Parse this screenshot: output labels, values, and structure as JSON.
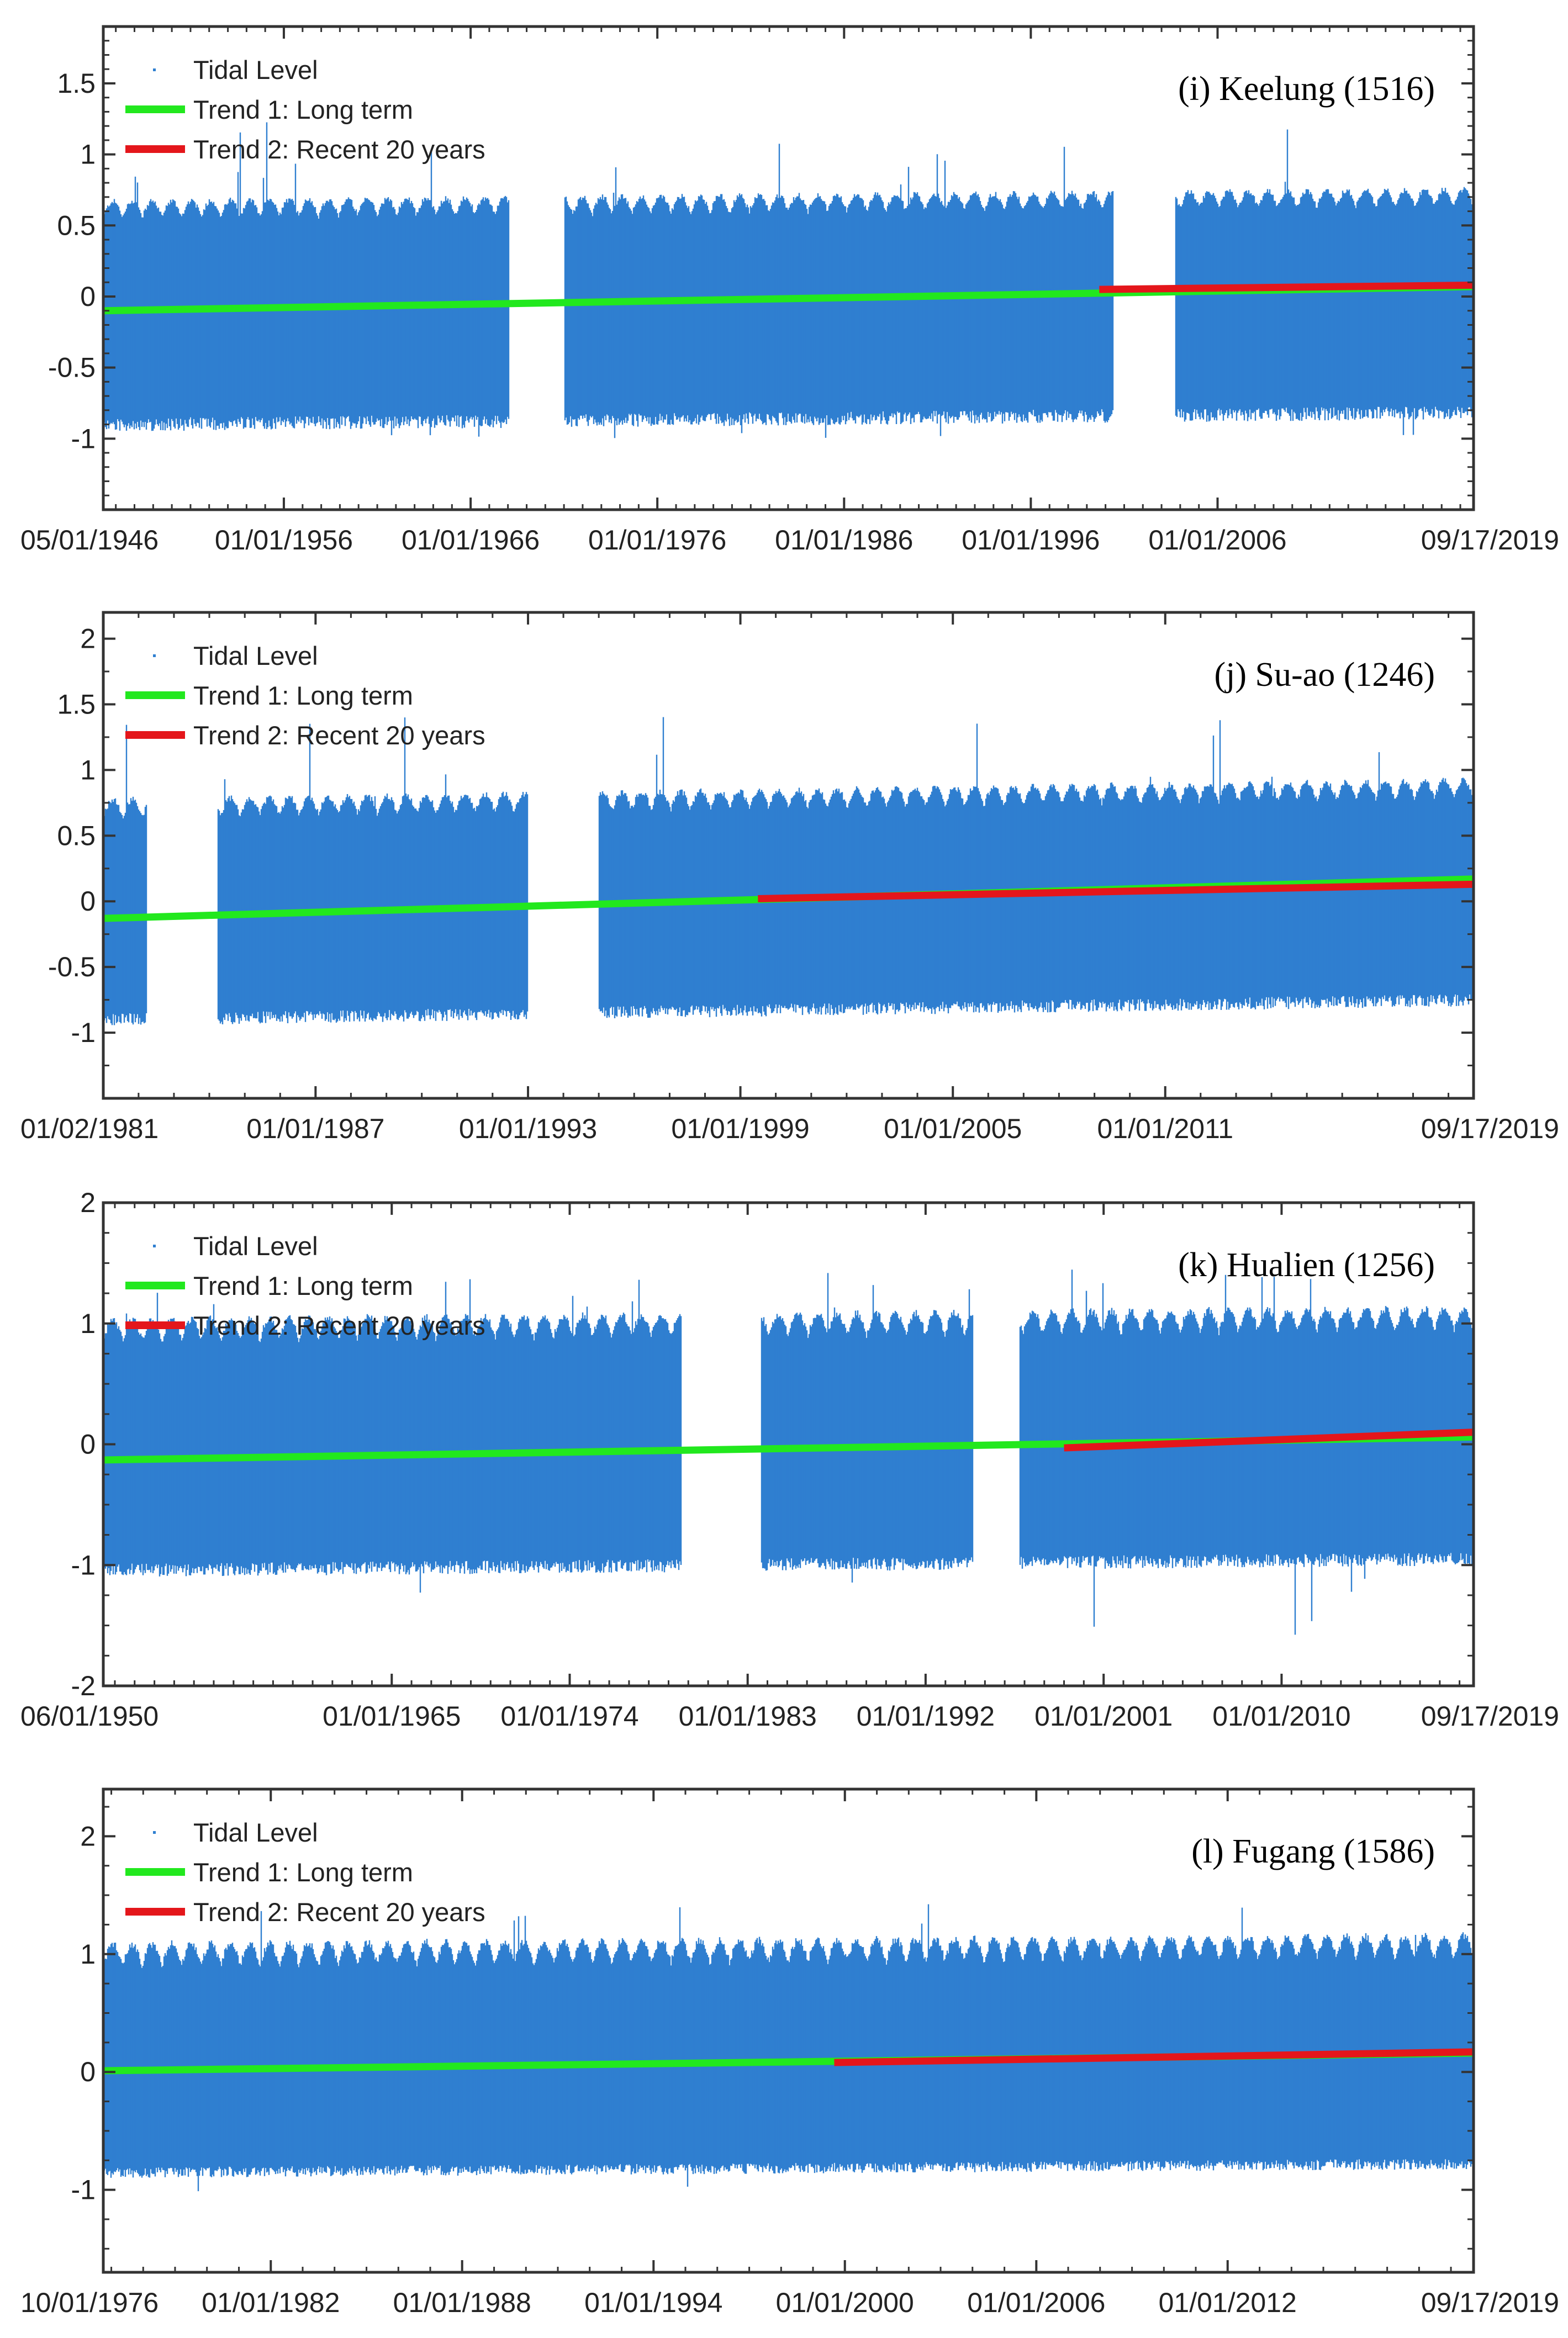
{
  "colors": {
    "tidal": "#2f7fd0",
    "trend_long": "#22e81e",
    "trend_recent": "#e4161b"
  },
  "chart_data": [
    {
      "type": "scatter",
      "title": "(i) Keelung (1516)",
      "legend": [
        "Tidal Level",
        "Trend 1: Long term",
        "Trend 2: Recent 20 years"
      ],
      "legend_position": "top-left",
      "grid": false,
      "xlim": [
        "1946-05-01",
        "2019-09-17"
      ],
      "ylim": [
        -1.5,
        1.9
      ],
      "yticks": [
        1.5,
        1,
        0.5,
        0,
        -0.5,
        -1
      ],
      "ytick_labels": [
        "1.5",
        "1",
        "0.5",
        "0",
        "-0.5",
        "-1"
      ],
      "xticks": [
        "1946-05-01",
        "1956-01-01",
        "1966-01-01",
        "1976-01-01",
        "1986-01-01",
        "1996-01-01",
        "2006-01-01",
        "2019-09-17"
      ],
      "xtick_labels": [
        "05/01/1946",
        "01/01/1956",
        "01/01/1966",
        "01/01/1976",
        "01/01/1986",
        "01/01/1996",
        "01/01/2006",
        "09/17/2019"
      ],
      "tidal_band": {
        "upper": 0.65,
        "lower": -0.95,
        "max_spike": 1.25,
        "min_spike": -1.0
      },
      "gaps": [
        [
          "1968-02-01",
          "1971-01-01"
        ],
        [
          "2000-06-01",
          "2003-10-01"
        ]
      ],
      "series": [
        {
          "name": "Trend 1: Long term",
          "x": [
            "1946-05-01",
            "2019-09-17"
          ],
          "y": [
            -0.1,
            0.07
          ]
        },
        {
          "name": "Trend 2: Recent 20 years",
          "x": [
            "1999-09-01",
            "2019-09-17"
          ],
          "y": [
            0.05,
            0.08
          ]
        }
      ]
    },
    {
      "type": "scatter",
      "title": "(j) Su-ao (1246)",
      "legend": [
        "Tidal Level",
        "Trend 1: Long term",
        "Trend 2: Recent 20 years"
      ],
      "legend_position": "top-left",
      "grid": false,
      "xlim": [
        "1981-01-02",
        "2019-09-17"
      ],
      "ylim": [
        -1.5,
        2.2
      ],
      "yticks": [
        2,
        1.5,
        1,
        0.5,
        0,
        -0.5,
        -1
      ],
      "ytick_labels": [
        "2",
        "1.5",
        "1",
        "0.5",
        "0",
        "-0.5",
        "-1"
      ],
      "xticks": [
        "1981-01-02",
        "1987-01-01",
        "1993-01-01",
        "1999-01-01",
        "2005-01-01",
        "2011-01-01",
        "2019-09-17"
      ],
      "xtick_labels": [
        "01/02/1981",
        "01/01/1987",
        "01/01/1993",
        "01/01/1999",
        "01/01/2005",
        "01/01/2011",
        "09/17/2019"
      ],
      "tidal_band": {
        "upper": 0.75,
        "lower": -0.95,
        "max_spike": 1.45,
        "min_spike": -1.0
      },
      "gaps": [
        [
          "1982-04-01",
          "1984-04-01"
        ],
        [
          "1993-01-01",
          "1995-01-01"
        ]
      ],
      "series": [
        {
          "name": "Trend 1: Long term",
          "x": [
            "1981-01-02",
            "2019-09-17"
          ],
          "y": [
            -0.13,
            0.17
          ]
        },
        {
          "name": "Trend 2: Recent 20 years",
          "x": [
            "1999-07-01",
            "2019-09-17"
          ],
          "y": [
            0.02,
            0.13
          ]
        }
      ]
    },
    {
      "type": "scatter",
      "title": "(k) Hualien (1256)",
      "legend": [
        "Tidal Level",
        "Trend 1: Long term",
        "Trend 2: Recent 20 years"
      ],
      "legend_position": "top-left",
      "grid": false,
      "xlim": [
        "1950-06-01",
        "2019-09-17"
      ],
      "ylim": [
        -2,
        2
      ],
      "yticks": [
        2,
        1,
        0,
        -1,
        -2
      ],
      "ytick_labels": [
        "2",
        "1",
        "0",
        "-1",
        "-2"
      ],
      "xticks": [
        "1950-06-01",
        "1965-01-01",
        "1974-01-01",
        "1983-01-01",
        "1992-01-01",
        "2001-01-01",
        "2010-01-01",
        "2019-09-17"
      ],
      "xtick_labels": [
        "06/01/1950",
        "01/01/1965",
        "01/01/1974",
        "01/01/1983",
        "01/01/1992",
        "01/01/2001",
        "01/01/2010",
        "09/17/2019"
      ],
      "tidal_band": {
        "upper": 1.0,
        "lower": -1.1,
        "max_spike": 1.45,
        "min_spike": -1.7
      },
      "gaps": [
        [
          "1979-09-01",
          "1983-09-01"
        ],
        [
          "1994-06-01",
          "1996-10-01"
        ]
      ],
      "series": [
        {
          "name": "Trend 1: Long term",
          "x": [
            "1950-06-01",
            "2019-09-17"
          ],
          "y": [
            -0.13,
            0.06
          ]
        },
        {
          "name": "Trend 2: Recent 20 years",
          "x": [
            "1999-01-01",
            "2019-09-17"
          ],
          "y": [
            -0.03,
            0.1
          ]
        }
      ]
    },
    {
      "type": "scatter",
      "title": "(l) Fugang (1586)",
      "legend": [
        "Tidal Level",
        "Trend 1: Long term",
        "Trend 2: Recent 20 years"
      ],
      "legend_position": "top-left",
      "grid": false,
      "xlim": [
        "1976-10-01",
        "2019-09-17"
      ],
      "ylim": [
        -1.7,
        2.4
      ],
      "yticks": [
        2,
        1,
        0,
        -1
      ],
      "ytick_labels": [
        "2",
        "1",
        "0",
        "-1"
      ],
      "xticks": [
        "1976-10-01",
        "1982-01-01",
        "1988-01-01",
        "1994-01-01",
        "2000-01-01",
        "2006-01-01",
        "2012-01-01",
        "2019-09-17"
      ],
      "xtick_labels": [
        "10/01/1976",
        "01/01/1982",
        "01/01/1988",
        "01/01/1994",
        "01/01/2000",
        "01/01/2006",
        "01/01/2012",
        "09/17/2019"
      ],
      "tidal_band": {
        "upper": 1.05,
        "lower": -0.9,
        "max_spike": 1.45,
        "min_spike": -1.05
      },
      "gaps": [],
      "series": [
        {
          "name": "Trend 1: Long term",
          "x": [
            "1976-10-01",
            "2019-09-17"
          ],
          "y": [
            0.01,
            0.16
          ]
        },
        {
          "name": "Trend 2: Recent 20 years",
          "x": [
            "1999-09-01",
            "2019-09-17"
          ],
          "y": [
            0.08,
            0.17
          ]
        }
      ]
    }
  ]
}
